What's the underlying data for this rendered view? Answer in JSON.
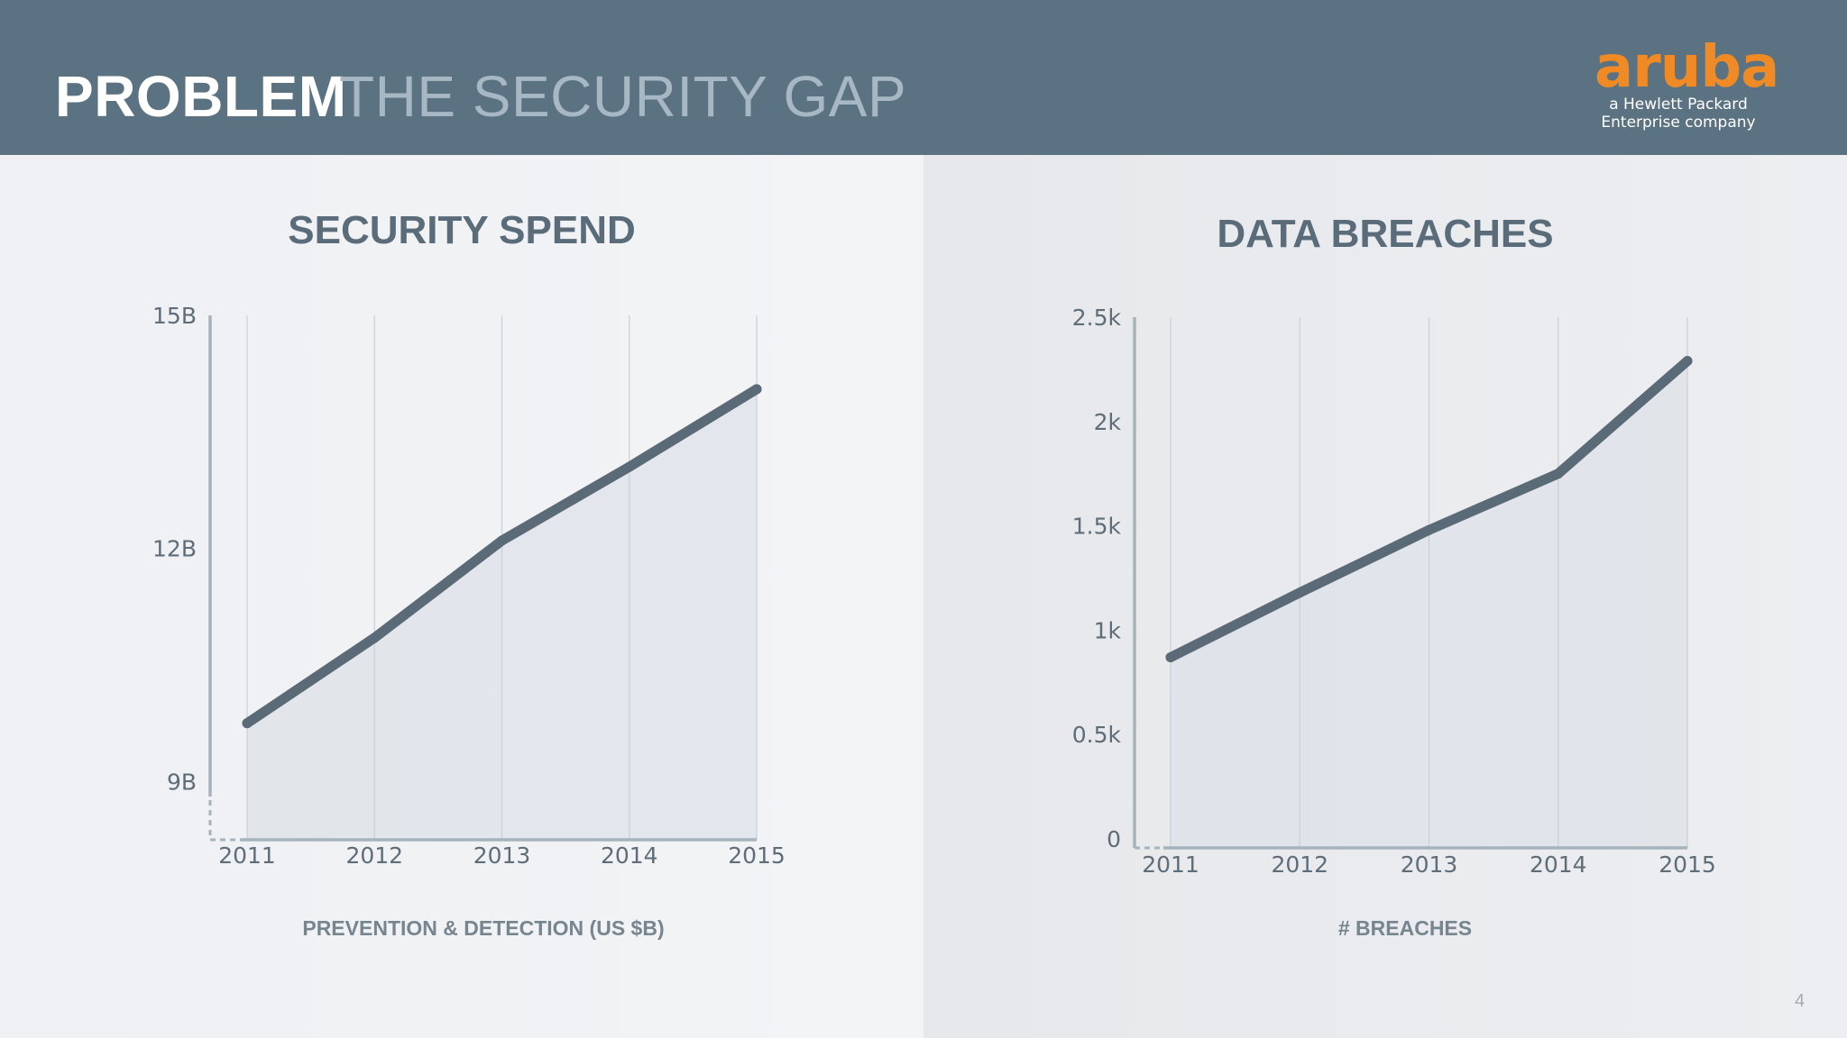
{
  "header": {
    "title_strong": "PROBLEM",
    "title_light": "THE SECURITY GAP"
  },
  "logo": {
    "wordmark": "aruba",
    "tagline_1": "a Hewlett Packard",
    "tagline_2": "Enterprise company"
  },
  "page_number": "4",
  "colors": {
    "header_bg": "#5b7282",
    "line": "#5a6a76",
    "area_fill": "#dde2e8",
    "logo_orange": "#f08a24"
  },
  "chart_data": [
    {
      "type": "area",
      "title": "SECURITY SPEND",
      "xlabel": "PREVENTION & DETECTION (US $B)",
      "ylabel": "",
      "x": [
        "2011",
        "2012",
        "2013",
        "2014",
        "2015"
      ],
      "series": [
        {
          "values": [
            9.75,
            10.85,
            12.1,
            13.05,
            14.05
          ]
        }
      ],
      "ylim": [
        8.25,
        15
      ],
      "yticks": [
        {
          "value": 9,
          "label": "9B"
        },
        {
          "value": 12,
          "label": "12B"
        },
        {
          "value": 15,
          "label": "15B"
        }
      ],
      "axis_break": true,
      "grid": "vertical"
    },
    {
      "type": "area",
      "title": "DATA BREACHES",
      "xlabel": "# BREACHES",
      "ylabel": "",
      "x": [
        "2011",
        "2012",
        "2013",
        "2014",
        "2015"
      ],
      "series": [
        {
          "values": [
            870,
            1180,
            1480,
            1750,
            2290
          ]
        }
      ],
      "ylim": [
        0,
        2500
      ],
      "yticks": [
        {
          "value": 0,
          "label": "0"
        },
        {
          "value": 500,
          "label": "0.5k"
        },
        {
          "value": 1000,
          "label": "1k"
        },
        {
          "value": 1500,
          "label": "1.5k"
        },
        {
          "value": 2000,
          "label": "2k"
        },
        {
          "value": 2500,
          "label": "2.5k"
        }
      ],
      "axis_break": false,
      "grid": "vertical"
    }
  ]
}
